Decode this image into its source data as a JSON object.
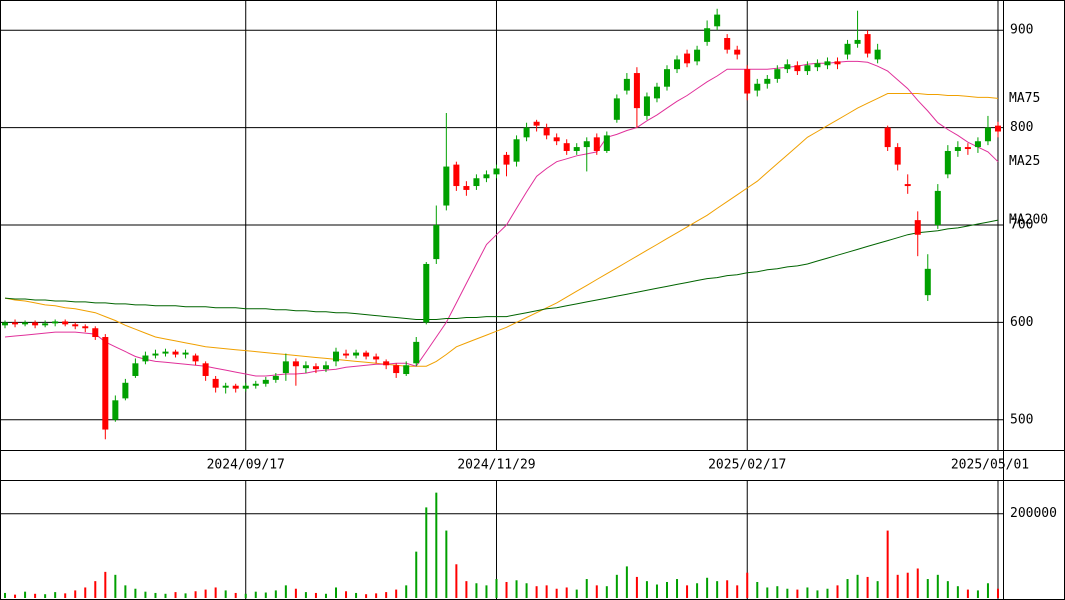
{
  "chart_data": {
    "type": "candlestick",
    "categories": [
      null,
      null,
      null,
      null,
      null,
      null,
      null,
      null,
      null,
      null,
      null,
      null,
      null,
      null,
      null,
      null,
      null,
      null,
      null,
      null,
      null,
      null,
      null,
      null,
      "2024/09/17",
      null,
      null,
      null,
      null,
      null,
      null,
      null,
      null,
      null,
      null,
      null,
      null,
      null,
      null,
      null,
      null,
      null,
      null,
      null,
      null,
      null,
      null,
      null,
      null,
      "2024/11/29",
      null,
      null,
      null,
      null,
      null,
      null,
      null,
      null,
      null,
      null,
      null,
      null,
      null,
      null,
      null,
      null,
      null,
      null,
      null,
      null,
      null,
      null,
      null,
      null,
      "2025/02/17",
      null,
      null,
      null,
      null,
      null,
      null,
      null,
      null,
      null,
      null,
      null,
      null,
      null,
      null,
      null,
      null,
      null,
      null,
      null,
      null,
      null,
      null,
      null,
      null,
      "2025/05/01"
    ],
    "open": [
      597,
      600,
      598,
      600,
      597,
      599,
      601,
      598,
      596,
      594,
      585,
      500,
      522,
      545,
      560,
      566,
      568,
      570,
      567,
      566,
      558,
      542,
      533,
      535,
      532,
      535,
      537,
      541,
      548,
      560,
      553,
      555,
      552,
      560,
      568,
      566,
      569,
      565,
      560,
      556,
      547,
      558,
      600,
      665,
      720,
      762,
      740,
      740,
      748,
      752,
      772,
      765,
      790,
      806,
      800,
      790,
      784,
      776,
      780,
      790,
      776,
      808,
      838,
      856,
      812,
      830,
      842,
      860,
      876,
      868,
      888,
      904,
      892,
      880,
      860,
      838,
      845,
      850,
      860,
      864,
      858,
      862,
      864,
      868,
      875,
      886,
      896,
      870,
      800,
      780,
      742,
      705,
      628,
      700,
      752,
      776,
      780,
      780,
      786,
      802
    ],
    "high": [
      602,
      603,
      602,
      602,
      602,
      603,
      603,
      600,
      598,
      596,
      588,
      525,
      542,
      563,
      570,
      572,
      573,
      572,
      572,
      568,
      560,
      545,
      538,
      537,
      538,
      540,
      544,
      548,
      568,
      563,
      560,
      558,
      560,
      574,
      572,
      572,
      571,
      568,
      562,
      558,
      560,
      585,
      662,
      720,
      815,
      765,
      745,
      752,
      756,
      762,
      775,
      792,
      805,
      808,
      804,
      794,
      788,
      784,
      790,
      794,
      796,
      834,
      856,
      862,
      836,
      846,
      864,
      874,
      880,
      884,
      910,
      922,
      896,
      884,
      864,
      850,
      854,
      864,
      870,
      868,
      868,
      870,
      872,
      872,
      890,
      920,
      900,
      886,
      802,
      784,
      752,
      714,
      670,
      742,
      782,
      786,
      784,
      790,
      812,
      806
    ],
    "low": [
      594,
      595,
      596,
      594,
      595,
      596,
      596,
      593,
      590,
      582,
      480,
      498,
      520,
      543,
      557,
      563,
      565,
      564,
      563,
      556,
      540,
      528,
      527,
      528,
      529,
      532,
      534,
      538,
      540,
      535,
      548,
      548,
      549,
      555,
      563,
      563,
      562,
      558,
      552,
      543,
      545,
      555,
      598,
      660,
      715,
      735,
      730,
      736,
      744,
      748,
      750,
      760,
      786,
      796,
      788,
      782,
      772,
      772,
      755,
      772,
      774,
      805,
      834,
      800,
      808,
      826,
      838,
      856,
      862,
      864,
      884,
      900,
      876,
      870,
      828,
      832,
      840,
      846,
      856,
      854,
      854,
      858,
      860,
      860,
      870,
      882,
      872,
      866,
      776,
      756,
      732,
      668,
      622,
      696,
      748,
      770,
      772,
      774,
      782,
      790
    ],
    "close": [
      600,
      598,
      600,
      597,
      599,
      601,
      598,
      596,
      594,
      585,
      490,
      520,
      538,
      558,
      566,
      568,
      570,
      567,
      569,
      560,
      545,
      533,
      535,
      532,
      535,
      537,
      541,
      545,
      560,
      555,
      556,
      552,
      556,
      570,
      566,
      569,
      565,
      562,
      556,
      548,
      556,
      580,
      660,
      700,
      760,
      740,
      736,
      748,
      752,
      758,
      762,
      788,
      800,
      802,
      792,
      786,
      776,
      780,
      786,
      776,
      792,
      830,
      850,
      820,
      832,
      842,
      860,
      870,
      866,
      880,
      902,
      916,
      880,
      875,
      835,
      845,
      850,
      860,
      865,
      858,
      864,
      866,
      868,
      865,
      886,
      890,
      876,
      880,
      780,
      762,
      740,
      690,
      655,
      735,
      776,
      780,
      778,
      786,
      800,
      796
    ],
    "volume": [
      12000,
      8000,
      15000,
      10000,
      9000,
      14000,
      11000,
      18000,
      25000,
      40000,
      62000,
      55000,
      30000,
      22000,
      15000,
      12000,
      10000,
      14000,
      11000,
      16000,
      20000,
      25000,
      18000,
      12000,
      10000,
      15000,
      13000,
      18000,
      30000,
      22000,
      14000,
      12000,
      10000,
      25000,
      16000,
      12000,
      9000,
      11000,
      14000,
      20000,
      30000,
      110000,
      215000,
      250000,
      160000,
      80000,
      40000,
      35000,
      30000,
      45000,
      38000,
      42000,
      35000,
      28000,
      30000,
      22000,
      25000,
      20000,
      45000,
      30000,
      28000,
      55000,
      75000,
      50000,
      40000,
      32000,
      38000,
      45000,
      30000,
      35000,
      48000,
      40000,
      42000,
      30000,
      60000,
      38000,
      25000,
      28000,
      22000,
      20000,
      25000,
      18000,
      22000,
      30000,
      45000,
      55000,
      50000,
      40000,
      160000,
      55000,
      60000,
      70000,
      45000,
      55000,
      40000,
      28000,
      20000,
      18000,
      35000,
      22000
    ],
    "up_color": "#00a000",
    "down_color": "#ff0000",
    "moving_averages": [
      {
        "name": "MA75",
        "color": "#f0a000",
        "values": [
          625,
          623,
          622,
          620,
          618,
          617,
          615,
          614,
          612,
          610,
          606,
          602,
          597,
          593,
          589,
          585,
          583,
          581,
          579,
          577,
          575,
          574,
          573,
          572,
          571,
          570,
          569,
          568,
          567,
          566,
          565,
          564,
          563,
          562,
          561,
          560,
          559,
          558,
          557,
          556,
          555,
          555,
          555,
          560,
          567,
          575,
          579,
          583,
          587,
          591,
          595,
          600,
          605,
          610,
          615,
          620,
          626,
          632,
          638,
          644,
          650,
          656,
          662,
          668,
          674,
          680,
          686,
          692,
          698,
          704,
          710,
          717,
          724,
          731,
          738,
          745,
          754,
          763,
          772,
          781,
          790,
          796,
          802,
          808,
          814,
          820,
          825,
          830,
          835,
          835,
          835,
          835,
          834,
          834,
          833,
          833,
          832,
          831,
          831,
          830
        ]
      },
      {
        "name": "MA25",
        "color": "#e0309a",
        "values": [
          585,
          586,
          587,
          588,
          589,
          590,
          590,
          590,
          589,
          588,
          580,
          575,
          570,
          565,
          562,
          560,
          559,
          558,
          557,
          556,
          555,
          553,
          551,
          549,
          547,
          545,
          545,
          546,
          547,
          547,
          548,
          550,
          551,
          552,
          554,
          555,
          556,
          557,
          557,
          558,
          558,
          555,
          570,
          585,
          600,
          620,
          640,
          660,
          680,
          690,
          700,
          717,
          734,
          750,
          758,
          765,
          768,
          771,
          773,
          775,
          790,
          793,
          797,
          800,
          807,
          813,
          820,
          827,
          833,
          840,
          847,
          853,
          860,
          860,
          860,
          860,
          860,
          861,
          862,
          863,
          865,
          866,
          866,
          867,
          868,
          868,
          867,
          863,
          858,
          849,
          840,
          828,
          817,
          805,
          798,
          792,
          785,
          780,
          775,
          765
        ]
      },
      {
        "name": "MA200",
        "color": "#006400",
        "values": [
          625,
          624,
          624,
          623,
          623,
          622,
          622,
          621,
          621,
          620,
          620,
          619,
          619,
          618,
          618,
          617,
          617,
          617,
          616,
          616,
          616,
          615,
          615,
          615,
          614,
          614,
          614,
          613,
          613,
          612,
          612,
          611,
          611,
          610,
          610,
          609,
          608,
          607,
          606,
          605,
          604,
          603,
          603,
          603,
          604,
          604,
          605,
          605,
          606,
          606,
          606,
          608,
          610,
          612,
          614,
          615,
          617,
          619,
          621,
          623,
          625,
          627,
          629,
          631,
          633,
          635,
          637,
          639,
          641,
          643,
          645,
          646,
          648,
          649,
          651,
          652,
          654,
          655,
          657,
          658,
          660,
          663,
          666,
          669,
          672,
          675,
          678,
          681,
          684,
          687,
          690,
          692,
          693,
          694,
          696,
          697,
          699,
          701,
          703,
          705
        ]
      }
    ],
    "ylim": [
      469,
      931
    ],
    "yticks": [
      500,
      600,
      700,
      800,
      900
    ],
    "volume_ylim": [
      0,
      280000
    ],
    "volume_yticks": [
      200000
    ],
    "grid": true
  }
}
